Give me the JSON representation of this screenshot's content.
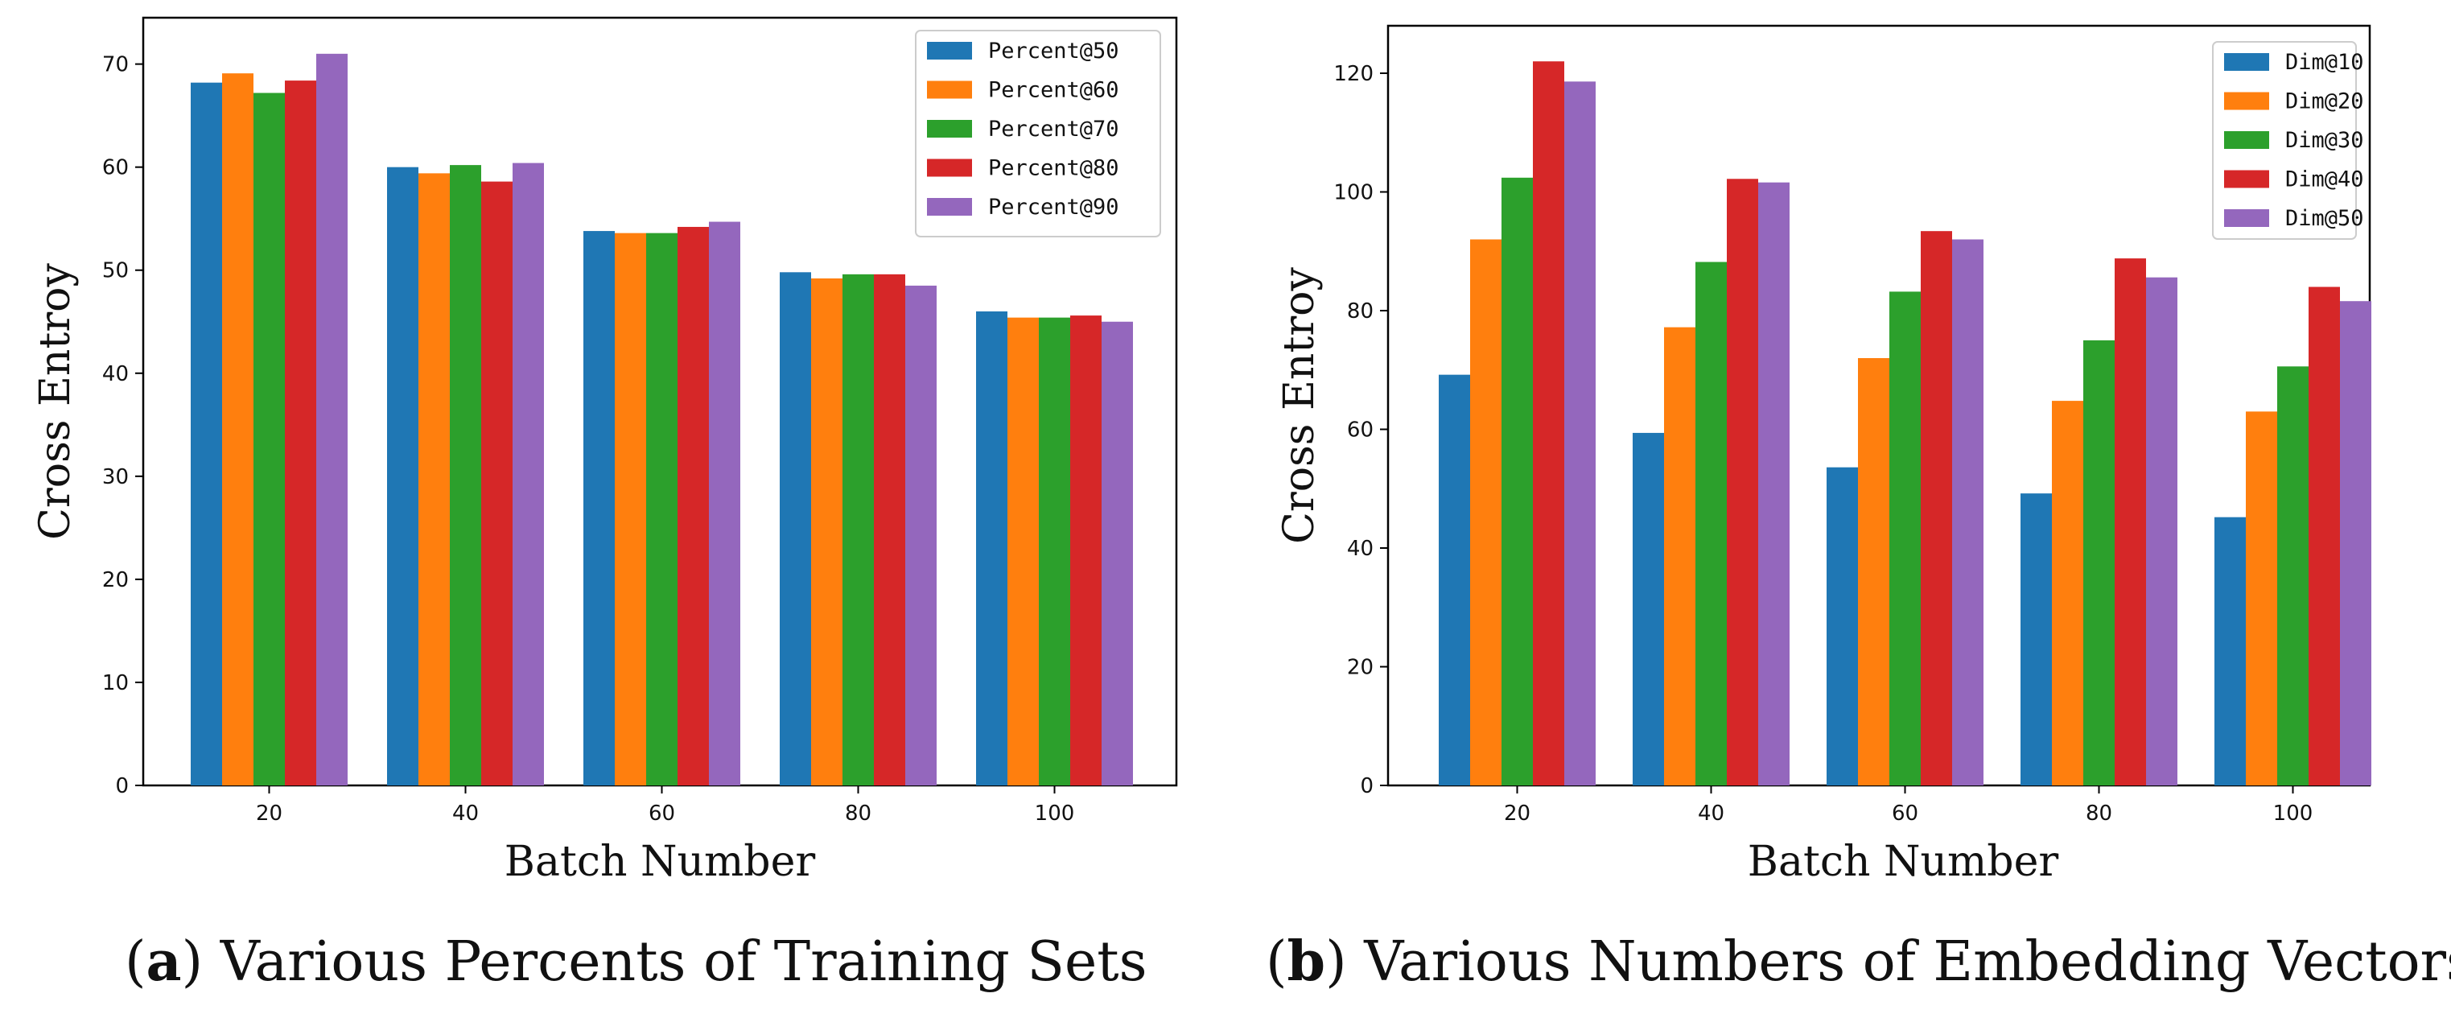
{
  "chart_data": [
    {
      "id": "a",
      "type": "bar",
      "caption_tag": "a",
      "caption": "Various Percents of Training Sets",
      "xlabel": "Batch Number",
      "ylabel": "Cross Entroy",
      "categories": [
        "20",
        "40",
        "60",
        "80",
        "100"
      ],
      "ylim": [
        0,
        74.5
      ],
      "yticks": [
        0,
        10,
        20,
        30,
        40,
        50,
        60,
        70
      ],
      "legend_position": "top-right",
      "series": [
        {
          "name": "Percent@50",
          "color": "#1f77b4",
          "values": [
            68.2,
            60.0,
            53.8,
            49.8,
            46.0
          ]
        },
        {
          "name": "Percent@60",
          "color": "#ff7f0e",
          "values": [
            69.1,
            59.4,
            53.6,
            49.2,
            45.4
          ]
        },
        {
          "name": "Percent@70",
          "color": "#2ca02c",
          "values": [
            67.2,
            60.2,
            53.6,
            49.6,
            45.4
          ]
        },
        {
          "name": "Percent@80",
          "color": "#d62728",
          "values": [
            68.4,
            58.6,
            54.2,
            49.6,
            45.6
          ]
        },
        {
          "name": "Percent@90",
          "color": "#9467bd",
          "values": [
            71.0,
            60.4,
            54.7,
            48.5,
            45.0
          ]
        }
      ]
    },
    {
      "id": "b",
      "type": "bar",
      "caption_tag": "b",
      "caption": "Various Numbers of Embedding Vectors",
      "xlabel": "Batch Number",
      "ylabel": "Cross Entroy",
      "categories": [
        "20",
        "40",
        "60",
        "80",
        "100"
      ],
      "ylim": [
        0,
        128
      ],
      "yticks": [
        0,
        20,
        40,
        60,
        80,
        100,
        120
      ],
      "legend_position": "top-right",
      "series": [
        {
          "name": "Dim@10",
          "color": "#1f77b4",
          "values": [
            69.2,
            59.4,
            53.6,
            49.2,
            45.2
          ]
        },
        {
          "name": "Dim@20",
          "color": "#ff7f0e",
          "values": [
            92.0,
            77.2,
            72.0,
            64.8,
            63.0
          ]
        },
        {
          "name": "Dim@30",
          "color": "#2ca02c",
          "values": [
            102.4,
            88.2,
            83.2,
            75.0,
            70.6
          ]
        },
        {
          "name": "Dim@40",
          "color": "#d62728",
          "values": [
            122.0,
            102.2,
            93.4,
            88.8,
            84.0
          ]
        },
        {
          "name": "Dim@50",
          "color": "#9467bd",
          "values": [
            118.6,
            101.6,
            92.0,
            85.6,
            81.6
          ]
        }
      ]
    }
  ]
}
